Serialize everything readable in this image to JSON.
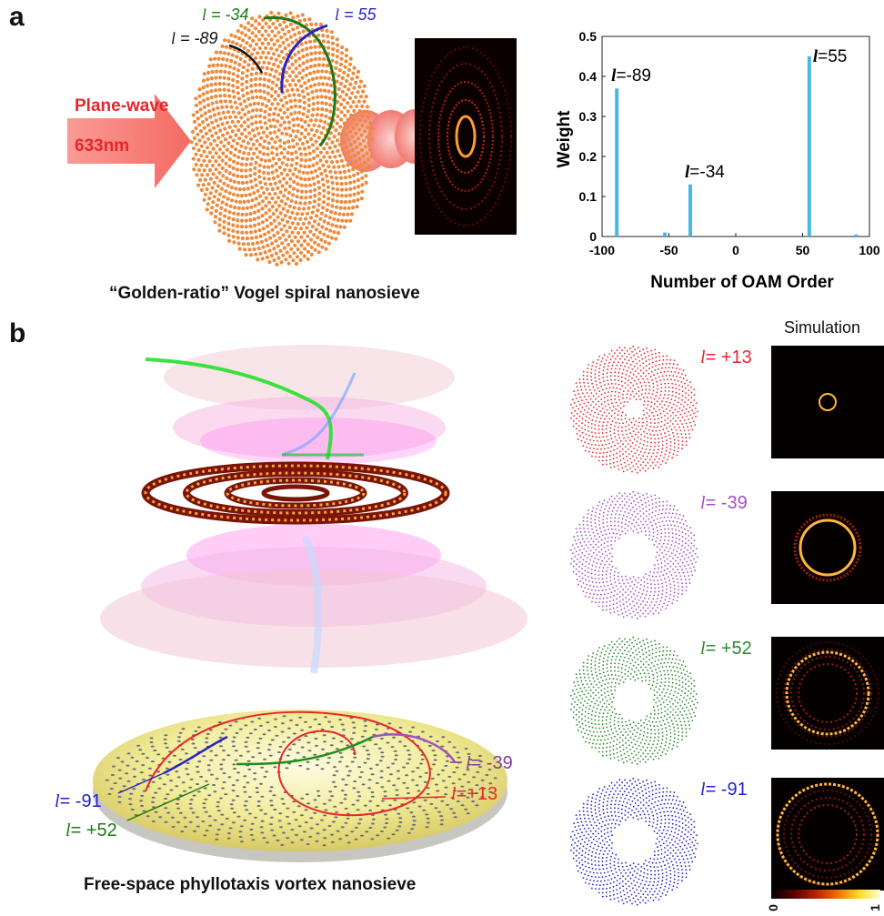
{
  "panel_a": {
    "letter": "a",
    "incident": {
      "line1": "Plane-wave",
      "line2": "633nm",
      "color": "#e8262c",
      "arrow_color": "#f7a09a"
    },
    "spiral_labels": [
      {
        "text": "= -34",
        "color": "#1c7a16"
      },
      {
        "text": "= 55",
        "color": "#2323c9"
      },
      {
        "text": "= -89",
        "color": "#111111"
      }
    ],
    "ell_symbol": "l",
    "dot_color": "#ee8a3c",
    "caption": "“Golden-ratio” Vogel spiral nanosieve"
  },
  "chart_data": {
    "type": "bar",
    "xlabel": "Number of OAM Order",
    "ylabel": "Weight",
    "xlim": [
      -100,
      100
    ],
    "ylim": [
      0,
      0.5
    ],
    "xticks": [
      -100,
      -50,
      0,
      50,
      100
    ],
    "xtick_labels": [
      "-100",
      "-50",
      "0",
      "50",
      "100"
    ],
    "yticks": [
      0,
      0.1,
      0.2,
      0.3,
      0.4,
      0.5
    ],
    "ytick_labels": [
      "0",
      "0.1",
      "0.2",
      "0.3",
      "0.4",
      "0.5"
    ],
    "bar_color": "#4ab7e3",
    "x": [
      -89,
      -53,
      -34,
      55,
      90
    ],
    "values": [
      0.37,
      0.01,
      0.13,
      0.45,
      0.005
    ],
    "annotations": [
      {
        "x": -89,
        "y": 0.37,
        "text": "=-89"
      },
      {
        "x": -34,
        "y": 0.13,
        "text": "=-34"
      },
      {
        "x": 55,
        "y": 0.45,
        "text": "=55"
      }
    ]
  },
  "panel_b": {
    "letter": "b",
    "caption": "Free-space phyllotaxis vortex nanosieve",
    "simulation_title": "Simulation",
    "disk_labels": [
      {
        "text": "= -39",
        "color": "#7c3f9a"
      },
      {
        "text": "=+13",
        "color": "#e8262c"
      },
      {
        "text": "= -91",
        "color": "#2323c9"
      },
      {
        "text": "= +52",
        "color": "#1c7a16"
      }
    ],
    "rows": [
      {
        "label": "= +13",
        "color": "#e8262c"
      },
      {
        "label": "= -39",
        "color": "#a24fc4"
      },
      {
        "label": "= +52",
        "color": "#2a8a2a"
      },
      {
        "label": "= -91",
        "color": "#2323c9"
      }
    ],
    "colorbar": {
      "min_label": "0",
      "max_label": "1"
    }
  }
}
